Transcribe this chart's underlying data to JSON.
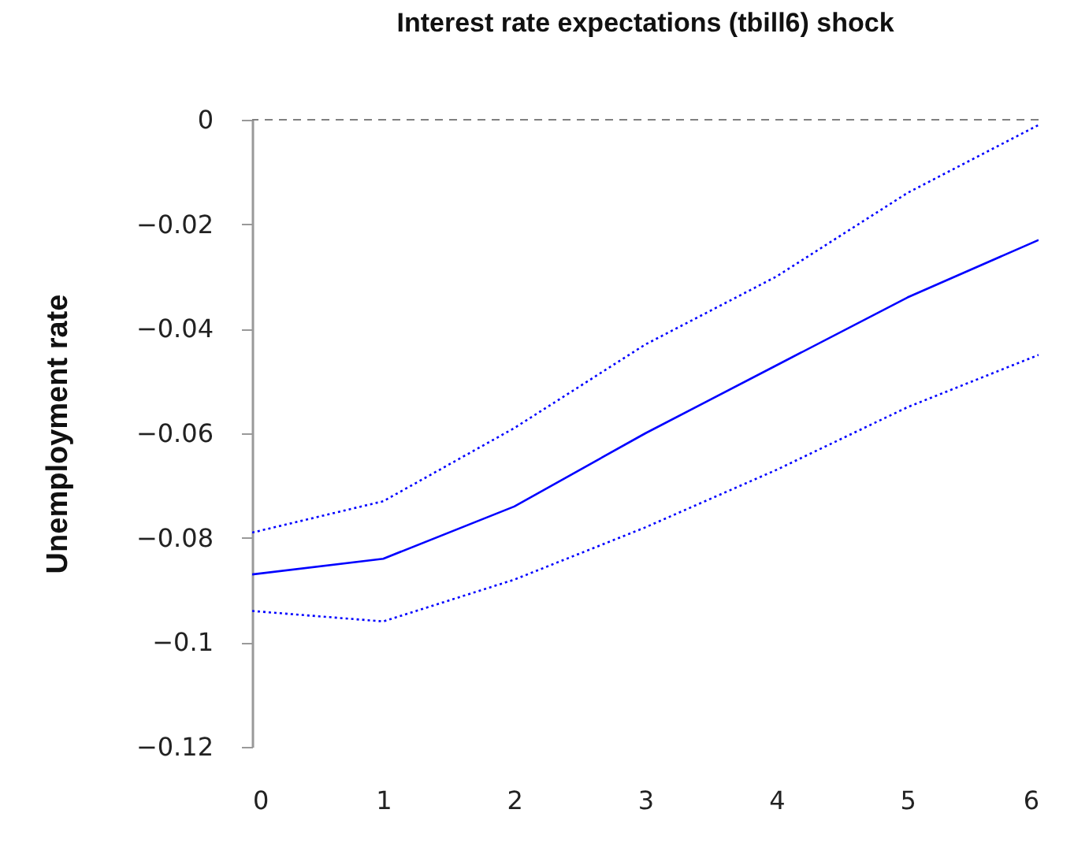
{
  "chart_data": {
    "type": "line",
    "title": "Interest rate expectations (tbill6) shock",
    "ylabel": "Unemployment rate",
    "x": [
      0,
      1,
      2,
      3,
      4,
      5,
      6
    ],
    "xlim": [
      0,
      6
    ],
    "xticks": [
      0,
      1,
      2,
      3,
      4,
      5,
      6
    ],
    "ylim": [
      -0.12,
      0
    ],
    "yticks": [
      0,
      {
        "value": -0.02,
        "label": "−0.02"
      },
      {
        "value": -0.04,
        "label": "−0.04"
      },
      {
        "value": -0.06,
        "label": "−0.06"
      },
      {
        "value": -0.08,
        "label": "−0.08"
      },
      {
        "value": -0.1,
        "label": "−0.1"
      },
      {
        "value": -0.12,
        "label": "−0.12"
      }
    ],
    "series": [
      {
        "color": "#0000ff",
        "line_style": "solid",
        "values": [
          -0.087,
          -0.084,
          -0.074,
          -0.06,
          -0.047,
          -0.034,
          -0.023
        ]
      },
      {
        "color": "#0000ff",
        "line_style": "dotted",
        "values": [
          -0.079,
          -0.073,
          -0.059,
          -0.043,
          -0.03,
          -0.014,
          -0.001
        ]
      },
      {
        "color": "#0000ff",
        "line_style": "dotted",
        "values": [
          -0.094,
          -0.096,
          -0.088,
          -0.078,
          -0.067,
          -0.055,
          -0.045
        ]
      }
    ],
    "ref_lines": [
      {
        "axis": "y",
        "value": 0,
        "color": "#808080",
        "line_style": "dashed"
      }
    ],
    "grid": false,
    "marker": "none"
  }
}
